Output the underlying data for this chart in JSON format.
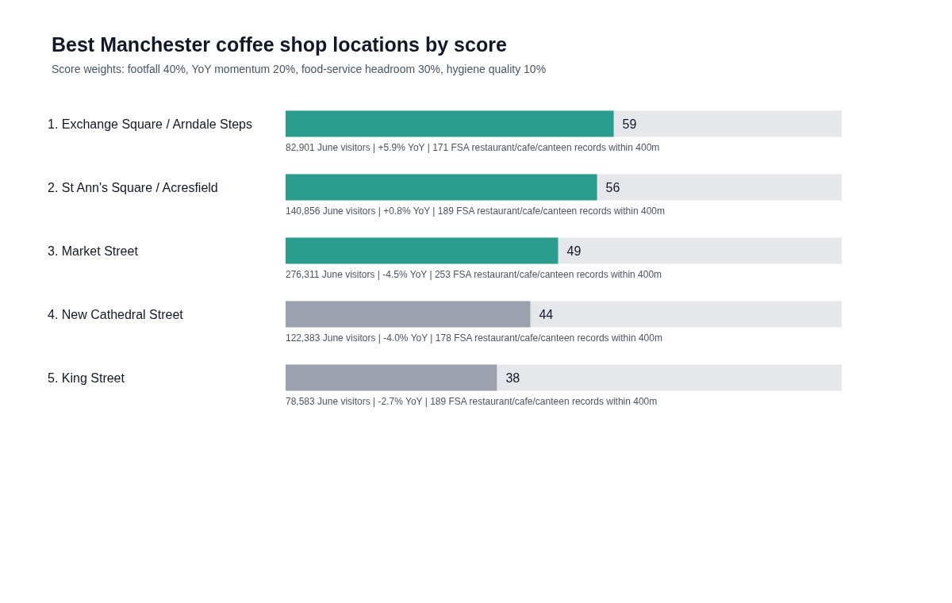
{
  "chart_data": {
    "type": "bar",
    "orientation": "horizontal",
    "title": "Best Manchester coffee shop locations by score",
    "subtitle": "Score weights: footfall 40%, YoY momentum 20%, food-service headroom 30%, hygiene quality 10%",
    "categories": [
      "1. Exchange Square / Arndale Steps",
      "2. St Ann's Square / Acresfield",
      "3. Market Street",
      "4. New Cathedral Street",
      "5. King Street"
    ],
    "values": [
      59,
      56,
      49,
      44,
      38
    ],
    "colors": [
      "#2a9d8f",
      "#2a9d8f",
      "#2a9d8f",
      "#9ca3af",
      "#9ca3af"
    ],
    "xlim": [
      0,
      100
    ],
    "data_labels": true,
    "annotations": [
      "82,901 June visitors | +5.9% YoY | 171 FSA restaurant/cafe/canteen records within 400m",
      "140,856 June visitors | +0.8% YoY | 189 FSA restaurant/cafe/canteen records within 400m",
      "276,311 June visitors | -4.5% YoY | 253 FSA restaurant/cafe/canteen records within 400m",
      "122,383 June visitors | -4.0% YoY | 178 FSA restaurant/cafe/canteen records within 400m",
      "78,583 June visitors | -2.7% YoY | 189 FSA restaurant/cafe/canteen records within 400m"
    ]
  }
}
